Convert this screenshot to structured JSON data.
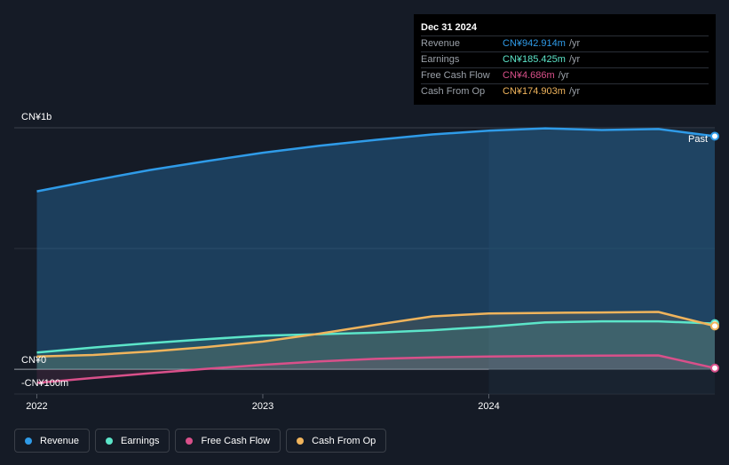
{
  "tooltip": {
    "date": "Dec 31 2024",
    "rows": [
      {
        "label": "Revenue",
        "value": "CN¥942.914m",
        "unit": "/yr",
        "color": "#2f9be8"
      },
      {
        "label": "Earnings",
        "value": "CN¥185.425m",
        "unit": "/yr",
        "color": "#5ce5c9"
      },
      {
        "label": "Free Cash Flow",
        "value": "CN¥4.686m",
        "unit": "/yr",
        "color": "#d9508a"
      },
      {
        "label": "Cash From Op",
        "value": "CN¥174.903m",
        "unit": "/yr",
        "color": "#f0b45c"
      }
    ]
  },
  "past_label": "Past",
  "legend": [
    {
      "label": "Revenue",
      "color": "#2f9be8"
    },
    {
      "label": "Earnings",
      "color": "#5ce5c9"
    },
    {
      "label": "Free Cash Flow",
      "color": "#d9508a"
    },
    {
      "label": "Cash From Op",
      "color": "#f0b45c"
    }
  ],
  "chart_data": {
    "type": "line",
    "y_tick_labels": [
      "CN¥1b",
      "CN¥0",
      "-CN¥100m"
    ],
    "y_ticks": [
      1000,
      0,
      -100
    ],
    "x_tick_labels": [
      "2022",
      "2023",
      "2024"
    ],
    "x_ticks": [
      2022.0,
      2023.0,
      2024.0
    ],
    "ylim": [
      -100,
      1000
    ],
    "xlim": [
      2021.9,
      2025.0
    ],
    "past_region_start": 2024.0,
    "series": [
      {
        "name": "Revenue",
        "color": "#2f9be8",
        "x": [
          2022.0,
          2022.25,
          2022.5,
          2022.75,
          2023.0,
          2023.25,
          2023.5,
          2023.75,
          2024.0,
          2024.25,
          2024.5,
          2024.75,
          2025.0
        ],
        "values": [
          720,
          764,
          806,
          842,
          876,
          904,
          928,
          950,
          965,
          975,
          968,
          972,
          943
        ]
      },
      {
        "name": "Earnings",
        "color": "#5ce5c9",
        "x": [
          2022.0,
          2022.25,
          2022.5,
          2022.75,
          2023.0,
          2023.25,
          2023.5,
          2023.75,
          2024.0,
          2024.25,
          2024.5,
          2024.75,
          2025.0
        ],
        "values": [
          68,
          88,
          106,
          122,
          136,
          142,
          148,
          158,
          172,
          190,
          194,
          194,
          185
        ]
      },
      {
        "name": "Free Cash Flow",
        "color": "#d9508a",
        "x": [
          2022.0,
          2022.25,
          2022.5,
          2022.75,
          2023.0,
          2023.25,
          2023.5,
          2023.75,
          2024.0,
          2024.25,
          2024.5,
          2024.75,
          2025.0
        ],
        "values": [
          -55,
          -35,
          -16,
          2,
          18,
          32,
          42,
          48,
          52,
          54,
          55,
          56,
          5
        ]
      },
      {
        "name": "Cash From Op",
        "color": "#f0b45c",
        "x": [
          2022.0,
          2022.25,
          2022.5,
          2022.75,
          2023.0,
          2023.25,
          2023.5,
          2023.75,
          2024.0,
          2024.25,
          2024.5,
          2024.75,
          2025.0
        ],
        "values": [
          52,
          58,
          72,
          90,
          112,
          144,
          180,
          214,
          226,
          228,
          230,
          232,
          175
        ]
      }
    ]
  }
}
